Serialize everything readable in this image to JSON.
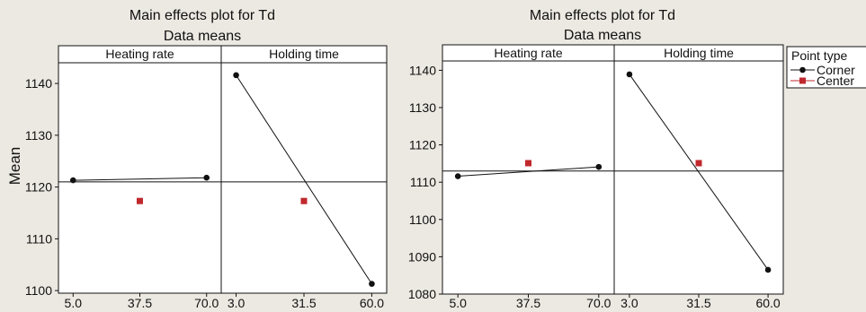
{
  "chart_data": [
    {
      "type": "line",
      "title": "Main effects plot for Td",
      "subtitle": "Data means",
      "ylabel": "Mean",
      "ylim": [
        1099.5,
        1144
      ],
      "yticks": [
        1100,
        1110,
        1120,
        1130,
        1140
      ],
      "reference_line": 1121,
      "panels": [
        {
          "name": "Heating rate",
          "ticks": [
            "5.0",
            "37.5",
            "70.0"
          ],
          "series": [
            {
              "name": "Corner",
              "points": [
                {
                  "x": "5.0",
                  "y": 1121.3
                },
                {
                  "x": "70.0",
                  "y": 1121.8
                }
              ]
            },
            {
              "name": "Center",
              "points": [
                {
                  "x": "37.5",
                  "y": 1117.3
                }
              ]
            }
          ]
        },
        {
          "name": "Holding time",
          "ticks": [
            "3.0",
            "31.5",
            "60.0"
          ],
          "series": [
            {
              "name": "Corner",
              "points": [
                {
                  "x": "3.0",
                  "y": 1141.6
                },
                {
                  "x": "60.0",
                  "y": 1101.3
                }
              ]
            },
            {
              "name": "Center",
              "points": [
                {
                  "x": "31.5",
                  "y": 1117.3
                }
              ]
            }
          ]
        }
      ]
    },
    {
      "type": "line",
      "title": "Main effects plot for Td",
      "subtitle": "Data means",
      "ylabel": "",
      "ylim": [
        1080,
        1142.5
      ],
      "yticks": [
        1080,
        1090,
        1100,
        1110,
        1120,
        1130,
        1140
      ],
      "reference_line": 1113,
      "panels": [
        {
          "name": "Heating rate",
          "ticks": [
            "5.0",
            "37.5",
            "70.0"
          ],
          "series": [
            {
              "name": "Corner",
              "points": [
                {
                  "x": "5.0",
                  "y": 1111.6
                },
                {
                  "x": "70.0",
                  "y": 1114.1
                }
              ]
            },
            {
              "name": "Center",
              "points": [
                {
                  "x": "37.5",
                  "y": 1115.1
                }
              ]
            }
          ]
        },
        {
          "name": "Holding time",
          "ticks": [
            "3.0",
            "31.5",
            "60.0"
          ],
          "series": [
            {
              "name": "Corner",
              "points": [
                {
                  "x": "3.0",
                  "y": 1138.9
                },
                {
                  "x": "60.0",
                  "y": 1086.5
                }
              ]
            },
            {
              "name": "Center",
              "points": [
                {
                  "x": "31.5",
                  "y": 1115.1
                }
              ]
            }
          ]
        }
      ]
    }
  ],
  "legend": {
    "title": "Point type",
    "items": [
      {
        "label": "Corner",
        "color": "#111111",
        "marker": "circle"
      },
      {
        "label": "Center",
        "color": "#c0282d",
        "marker": "square"
      }
    ]
  }
}
